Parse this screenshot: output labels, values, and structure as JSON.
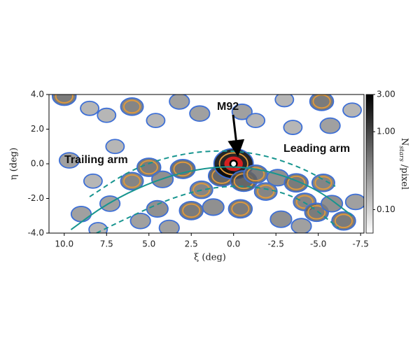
{
  "chart_data": {
    "type": "density_map",
    "xlabel": "ξ (deg)",
    "ylabel": "η (deg)",
    "colorbar_label": {
      "base": "N",
      "sub": "stars",
      "rest": " /pixel"
    },
    "xlim": [
      10.9,
      -7.7
    ],
    "ylim": [
      -4.0,
      4.0
    ],
    "xticks": [
      {
        "value": 10,
        "label": "10.0"
      },
      {
        "value": 7.5,
        "label": "7.5"
      },
      {
        "value": 5,
        "label": "5.0"
      },
      {
        "value": 2.5,
        "label": "2.5"
      },
      {
        "value": 0,
        "label": "0.0"
      },
      {
        "value": -2.5,
        "label": "-2.5"
      },
      {
        "value": -5,
        "label": "-5.0"
      },
      {
        "value": -7.5,
        "label": "-7.5"
      }
    ],
    "yticks": [
      {
        "value": 4,
        "label": "4.0"
      },
      {
        "value": 2,
        "label": "2.0"
      },
      {
        "value": 0,
        "label": "0.0"
      },
      {
        "value": -2,
        "label": "-2.0"
      },
      {
        "value": -4,
        "label": "-4.0"
      }
    ],
    "clim": [
      0.05,
      3.0
    ],
    "cticks": [
      {
        "value": 3,
        "label": "3.00"
      },
      {
        "value": 1,
        "label": "1.00"
      },
      {
        "value": 0.1,
        "label": "0.10"
      }
    ],
    "color_log_scale": true,
    "contours": [
      {
        "level": 0.2,
        "color": "#3d6fd6"
      },
      {
        "level": 0.5,
        "color": "#e39a3a"
      },
      {
        "level": 2.0,
        "color": "#d42020"
      }
    ],
    "density": {
      "x": [
        10.0,
        8.5,
        7.5,
        6.0,
        4.6,
        2.0,
        -0.5,
        -1.3,
        -3.5,
        -5.2,
        -5.7,
        -7.0,
        3.2,
        -3.0,
        6.0,
        5.0,
        4.2,
        3.0,
        2.5,
        1.9,
        1.2,
        0.7,
        0.0,
        -0.6,
        -0.4,
        -1.3,
        -1.9,
        -2.6,
        -2.8,
        -3.7,
        -4.2,
        -4.9,
        -5.3,
        -5.8,
        -6.5,
        -7.2,
        -4.0,
        9.0,
        7.3,
        5.5,
        4.5,
        3.8,
        8.0,
        9.7,
        8.3,
        7.0
      ],
      "y": [
        3.9,
        3.2,
        2.8,
        3.3,
        2.5,
        2.9,
        3.0,
        2.5,
        2.1,
        3.6,
        2.2,
        3.1,
        3.6,
        3.7,
        -1.0,
        -0.2,
        -0.9,
        -0.3,
        -2.7,
        -1.5,
        -2.5,
        -0.7,
        0.0,
        -1.0,
        -2.6,
        -0.6,
        -1.6,
        -0.8,
        -3.2,
        -1.1,
        -2.2,
        -2.8,
        -1.1,
        -2.3,
        -3.3,
        -2.2,
        -3.6,
        -2.9,
        -2.3,
        -3.3,
        -2.6,
        -3.7,
        -3.8,
        0.2,
        -1.0,
        1.0
      ],
      "values": [
        0.6,
        0.2,
        0.2,
        0.5,
        0.2,
        0.3,
        0.3,
        0.2,
        0.2,
        0.6,
        0.3,
        0.2,
        0.3,
        0.2,
        0.5,
        0.6,
        0.4,
        0.7,
        0.6,
        0.5,
        0.4,
        0.9,
        3.0,
        0.9,
        0.6,
        0.6,
        0.5,
        0.4,
        0.4,
        0.6,
        0.5,
        0.6,
        0.5,
        0.4,
        0.6,
        0.3,
        0.3,
        0.3,
        0.3,
        0.3,
        0.4,
        0.3,
        0.2,
        0.3,
        0.2,
        0.2
      ]
    },
    "tracks": [
      {
        "color": "#17958f",
        "dashed": false,
        "x": [
          9.6,
          7.5,
          5.0,
          2.5,
          0.0,
          -2.5,
          -5.0,
          -7.0
        ],
        "y": [
          -3.8,
          -2.3,
          -1.1,
          -0.35,
          -0.1,
          -0.5,
          -1.5,
          -3.0
        ]
      },
      {
        "color": "#17958f",
        "dashed": true,
        "x": [
          8.5,
          6.0,
          3.5,
          1.0,
          -1.5,
          -4.0,
          -6.0
        ],
        "y": [
          -1.9,
          -0.3,
          0.5,
          0.8,
          0.6,
          -0.2,
          -1.3
        ]
      },
      {
        "color": "#17958f",
        "dashed": true,
        "x": [
          8.1,
          6.0,
          3.5,
          1.0,
          -1.5,
          -4.0,
          -6.2
        ],
        "y": [
          -4.0,
          -3.0,
          -1.9,
          -1.3,
          -1.3,
          -2.0,
          -3.7
        ]
      }
    ],
    "annotations": [
      {
        "text": "M92"
      },
      {
        "text": "Trailing arm"
      },
      {
        "text": "Leading arm"
      }
    ]
  }
}
